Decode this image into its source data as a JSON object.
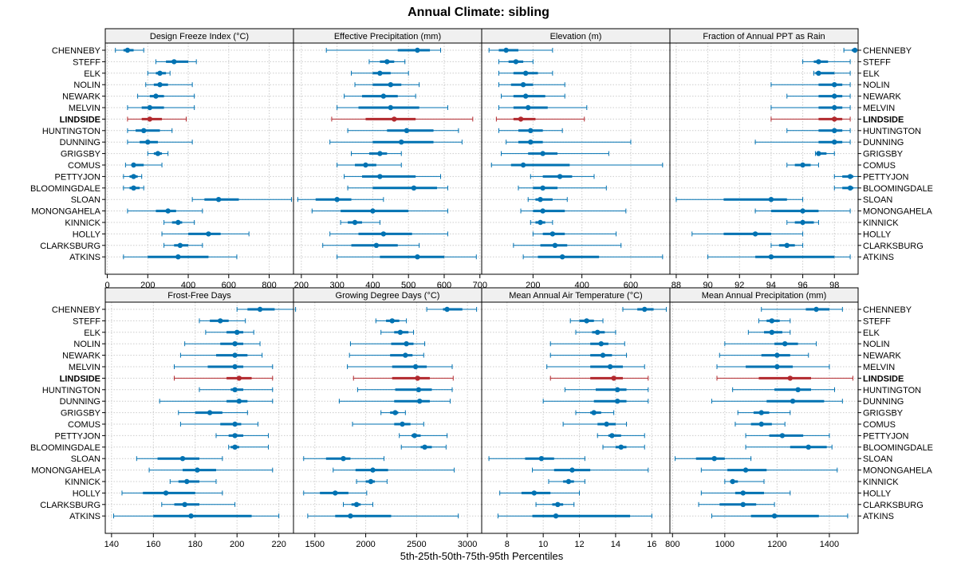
{
  "chart_data": {
    "type": "interval-dotplot",
    "title": "Annual Climate: sibling",
    "xlabel": "5th-25th-50th-75th-95th Percentiles",
    "highlight": "LINDSIDE",
    "colors": {
      "normal": "#0072B2",
      "highlight": "#B2292E",
      "strip": "#f0f0f0",
      "grid": "#cccccc"
    },
    "sites": [
      "CHENNEBY",
      "STEFF",
      "ELK",
      "NOLIN",
      "NEWARK",
      "MELVIN",
      "LINDSIDE",
      "HUNTINGTON",
      "DUNNING",
      "GRIGSBY",
      "COMUS",
      "PETTYJON",
      "BLOOMINGDALE",
      "SLOAN",
      "MONONGAHELA",
      "KINNICK",
      "HOLLY",
      "CLARKSBURG",
      "ATKINS"
    ],
    "panels": [
      {
        "name": "Design Freeze Index (°C)",
        "xlim": [
          -10,
          920
        ],
        "ticks": [
          0,
          200,
          400,
          600,
          800
        ],
        "values": [
          [
            40,
            80,
            100,
            130,
            180
          ],
          [
            240,
            290,
            330,
            400,
            440
          ],
          [
            200,
            240,
            260,
            290,
            310
          ],
          [
            190,
            230,
            260,
            300,
            420
          ],
          [
            150,
            210,
            240,
            280,
            430
          ],
          [
            100,
            170,
            210,
            280,
            430
          ],
          [
            100,
            170,
            210,
            270,
            390
          ],
          [
            100,
            140,
            180,
            260,
            320
          ],
          [
            100,
            160,
            200,
            250,
            420
          ],
          [
            200,
            230,
            250,
            270,
            300
          ],
          [
            90,
            120,
            130,
            180,
            270
          ],
          [
            80,
            110,
            130,
            150,
            170
          ],
          [
            80,
            110,
            130,
            160,
            180
          ],
          [
            420,
            480,
            550,
            650,
            910
          ],
          [
            100,
            240,
            300,
            340,
            470
          ],
          [
            280,
            320,
            350,
            370,
            430
          ],
          [
            270,
            400,
            500,
            560,
            700
          ],
          [
            280,
            330,
            360,
            400,
            470
          ],
          [
            80,
            200,
            350,
            500,
            640
          ]
        ]
      },
      {
        "name": "Effective Precipitation (mm)",
        "xlim": [
          178,
          705
        ],
        "ticks": [
          200,
          300,
          400,
          500,
          600,
          700
        ],
        "values": [
          [
            270,
            470,
            525,
            560,
            590
          ],
          [
            390,
            420,
            440,
            460,
            490
          ],
          [
            340,
            400,
            420,
            450,
            500
          ],
          [
            350,
            400,
            450,
            480,
            530
          ],
          [
            320,
            370,
            430,
            470,
            520
          ],
          [
            300,
            360,
            450,
            530,
            610
          ],
          [
            285,
            380,
            460,
            520,
            680
          ],
          [
            330,
            440,
            495,
            570,
            640
          ],
          [
            280,
            400,
            480,
            570,
            650
          ],
          [
            340,
            390,
            420,
            440,
            480
          ],
          [
            300,
            350,
            380,
            410,
            480
          ],
          [
            320,
            370,
            420,
            520,
            590
          ],
          [
            330,
            400,
            515,
            580,
            610
          ],
          [
            190,
            240,
            300,
            340,
            430
          ],
          [
            230,
            310,
            400,
            500,
            610
          ],
          [
            310,
            330,
            350,
            370,
            420
          ],
          [
            280,
            360,
            430,
            510,
            610
          ],
          [
            260,
            340,
            410,
            470,
            530
          ],
          [
            300,
            420,
            525,
            600,
            690
          ]
        ]
      },
      {
        "name": "Elevation (m)",
        "xlim": [
          -10,
          760
        ],
        "ticks": [
          200,
          400,
          600
        ],
        "values": [
          [
            20,
            60,
            90,
            140,
            280
          ],
          [
            60,
            100,
            130,
            160,
            200
          ],
          [
            60,
            120,
            170,
            220,
            280
          ],
          [
            60,
            110,
            160,
            200,
            330
          ],
          [
            70,
            120,
            170,
            250,
            330
          ],
          [
            60,
            120,
            180,
            260,
            420
          ],
          [
            50,
            120,
            150,
            210,
            410
          ],
          [
            60,
            140,
            190,
            240,
            320
          ],
          [
            90,
            140,
            190,
            240,
            600
          ],
          [
            70,
            180,
            240,
            300,
            510
          ],
          [
            30,
            110,
            160,
            350,
            730
          ],
          [
            190,
            240,
            310,
            360,
            450
          ],
          [
            140,
            200,
            240,
            300,
            500
          ],
          [
            180,
            210,
            230,
            280,
            340
          ],
          [
            150,
            200,
            240,
            330,
            580
          ],
          [
            190,
            210,
            230,
            250,
            280
          ],
          [
            200,
            240,
            280,
            330,
            540
          ],
          [
            120,
            230,
            290,
            340,
            560
          ],
          [
            160,
            220,
            320,
            470,
            730
          ]
        ]
      },
      {
        "name": "Fraction of Annual PPT as Rain",
        "xlim": [
          87.6,
          99.5
        ],
        "ticks": [
          88,
          90,
          92,
          94,
          96,
          98
        ],
        "values": [
          [
            98.6,
            99.1,
            99.3,
            99.4,
            99.5
          ],
          [
            96.0,
            96.7,
            97.0,
            97.6,
            99.0
          ],
          [
            96.7,
            96.8,
            97.0,
            98.0,
            99.0
          ],
          [
            94.0,
            97.0,
            98.0,
            98.5,
            99.0
          ],
          [
            95.0,
            97.0,
            98.0,
            98.5,
            99.0
          ],
          [
            94.0,
            97.0,
            98.0,
            98.5,
            99.0
          ],
          [
            94.0,
            97.0,
            98.0,
            98.5,
            99.0
          ],
          [
            95.0,
            97.0,
            98.0,
            98.5,
            99.0
          ],
          [
            93.0,
            97.0,
            98.0,
            98.5,
            99.0
          ],
          [
            96.8,
            96.9,
            97.0,
            97.5,
            98.0
          ],
          [
            95.0,
            95.5,
            96.0,
            96.5,
            97.0
          ],
          [
            98.0,
            98.5,
            99.0,
            99.2,
            99.5
          ],
          [
            98.0,
            98.5,
            99.0,
            99.2,
            99.5
          ],
          [
            88.0,
            91.0,
            94.0,
            95.0,
            96.0
          ],
          [
            93.0,
            94.0,
            96.0,
            97.0,
            99.0
          ],
          [
            95.0,
            95.5,
            96.0,
            96.7,
            97.0
          ],
          [
            89.0,
            91.0,
            93.0,
            94.0,
            96.0
          ],
          [
            94.0,
            94.5,
            95.0,
            95.5,
            96.0
          ],
          [
            90.0,
            93.0,
            94.0,
            98.0,
            99.0
          ]
        ]
      },
      {
        "name": "Frost-Free Days",
        "xlim": [
          137,
          227
        ],
        "ticks": [
          140,
          160,
          180,
          200,
          220
        ],
        "values": [
          [
            200,
            205,
            211,
            218,
            228
          ],
          [
            182,
            187,
            192,
            196,
            204
          ],
          [
            185,
            195,
            200,
            203,
            208
          ],
          [
            175,
            192,
            199,
            203,
            211
          ],
          [
            173,
            190,
            199,
            205,
            212
          ],
          [
            170,
            186,
            199,
            203,
            217
          ],
          [
            170,
            195,
            201,
            207,
            217
          ],
          [
            182,
            197,
            199,
            203,
            217
          ],
          [
            163,
            195,
            201,
            205,
            217
          ],
          [
            172,
            180,
            187,
            193,
            205
          ],
          [
            173,
            192,
            199,
            202,
            210
          ],
          [
            190,
            196,
            199,
            203,
            215
          ],
          [
            196,
            197,
            199,
            201,
            215
          ],
          [
            152,
            162,
            174,
            182,
            193
          ],
          [
            158,
            174,
            181,
            190,
            217
          ],
          [
            168,
            172,
            176,
            182,
            190
          ],
          [
            145,
            155,
            166,
            180,
            193
          ],
          [
            164,
            170,
            175,
            182,
            199
          ],
          [
            141,
            160,
            178,
            207,
            220
          ]
        ]
      },
      {
        "name": "Growing Degree Days (°C)",
        "xlim": [
          1290,
          3140
        ],
        "ticks": [
          1500,
          2000,
          2500,
          3000
        ],
        "values": [
          [
            2600,
            2760,
            2800,
            2950,
            3090
          ],
          [
            2100,
            2200,
            2260,
            2330,
            2400
          ],
          [
            2150,
            2280,
            2340,
            2420,
            2470
          ],
          [
            1850,
            2250,
            2400,
            2470,
            2580
          ],
          [
            1840,
            2240,
            2390,
            2460,
            2570
          ],
          [
            1820,
            2260,
            2490,
            2600,
            2850
          ],
          [
            1880,
            2260,
            2510,
            2630,
            2860
          ],
          [
            1920,
            2290,
            2520,
            2650,
            2850
          ],
          [
            1740,
            2280,
            2530,
            2630,
            2830
          ],
          [
            2150,
            2240,
            2290,
            2320,
            2390
          ],
          [
            1870,
            2280,
            2360,
            2440,
            2570
          ],
          [
            2330,
            2450,
            2480,
            2540,
            2800
          ],
          [
            2350,
            2540,
            2580,
            2650,
            2790
          ],
          [
            1390,
            1610,
            1780,
            1850,
            2180
          ],
          [
            1680,
            1900,
            2070,
            2220,
            2870
          ],
          [
            1910,
            2000,
            2050,
            2090,
            2210
          ],
          [
            1390,
            1550,
            1700,
            1830,
            2010
          ],
          [
            1780,
            1860,
            1910,
            1950,
            2070
          ],
          [
            1430,
            1700,
            1850,
            2250,
            2910
          ]
        ]
      },
      {
        "name": "Mean Annual Air Temperature (°C)",
        "xlim": [
          6.6,
          17.0
        ],
        "ticks": [
          8,
          10,
          12,
          14,
          16
        ],
        "values": [
          [
            14.4,
            15.2,
            15.6,
            16.1,
            16.8
          ],
          [
            11.5,
            12.0,
            12.4,
            12.8,
            13.3
          ],
          [
            11.8,
            12.7,
            13.0,
            13.4,
            14.0
          ],
          [
            10.4,
            12.6,
            13.2,
            13.6,
            14.5
          ],
          [
            10.4,
            12.6,
            13.3,
            13.8,
            14.6
          ],
          [
            10.2,
            12.6,
            13.7,
            14.4,
            15.6
          ],
          [
            10.4,
            12.6,
            13.9,
            14.4,
            15.8
          ],
          [
            11.2,
            12.9,
            14.1,
            14.6,
            15.8
          ],
          [
            10.0,
            12.8,
            14.1,
            14.6,
            15.8
          ],
          [
            11.8,
            12.6,
            12.8,
            13.2,
            13.9
          ],
          [
            11.1,
            13.0,
            13.5,
            14.0,
            14.6
          ],
          [
            13.0,
            13.6,
            13.8,
            14.3,
            15.6
          ],
          [
            13.3,
            14.0,
            14.3,
            14.6,
            15.6
          ],
          [
            7.0,
            9.0,
            9.9,
            10.6,
            12.3
          ],
          [
            9.4,
            10.6,
            11.6,
            12.6,
            15.8
          ],
          [
            10.3,
            11.1,
            11.4,
            11.7,
            12.3
          ],
          [
            7.6,
            8.8,
            9.5,
            10.4,
            12.0
          ],
          [
            9.6,
            10.5,
            10.8,
            11.1,
            11.7
          ],
          [
            7.5,
            9.4,
            10.7,
            14.8,
            16.0
          ]
        ]
      },
      {
        "name": "Mean Annual Precipitation (mm)",
        "xlim": [
          790,
          1510
        ],
        "ticks": [
          800,
          1000,
          1200,
          1400
        ],
        "values": [
          [
            1140,
            1310,
            1350,
            1400,
            1450
          ],
          [
            1130,
            1160,
            1180,
            1210,
            1250
          ],
          [
            1090,
            1150,
            1180,
            1220,
            1250
          ],
          [
            1000,
            1190,
            1230,
            1280,
            1350
          ],
          [
            980,
            1140,
            1200,
            1250,
            1320
          ],
          [
            970,
            1080,
            1200,
            1260,
            1400
          ],
          [
            970,
            1130,
            1250,
            1330,
            1490
          ],
          [
            1030,
            1190,
            1280,
            1330,
            1420
          ],
          [
            950,
            1160,
            1260,
            1380,
            1450
          ],
          [
            1050,
            1110,
            1140,
            1170,
            1250
          ],
          [
            1040,
            1100,
            1140,
            1180,
            1230
          ],
          [
            1080,
            1170,
            1220,
            1300,
            1400
          ],
          [
            1080,
            1250,
            1320,
            1390,
            1410
          ],
          [
            810,
            890,
            960,
            1000,
            1100
          ],
          [
            910,
            1010,
            1080,
            1160,
            1430
          ],
          [
            1000,
            1020,
            1030,
            1050,
            1150
          ],
          [
            910,
            1040,
            1070,
            1150,
            1250
          ],
          [
            900,
            980,
            1070,
            1120,
            1190
          ],
          [
            950,
            1100,
            1190,
            1360,
            1470
          ]
        ]
      }
    ]
  }
}
